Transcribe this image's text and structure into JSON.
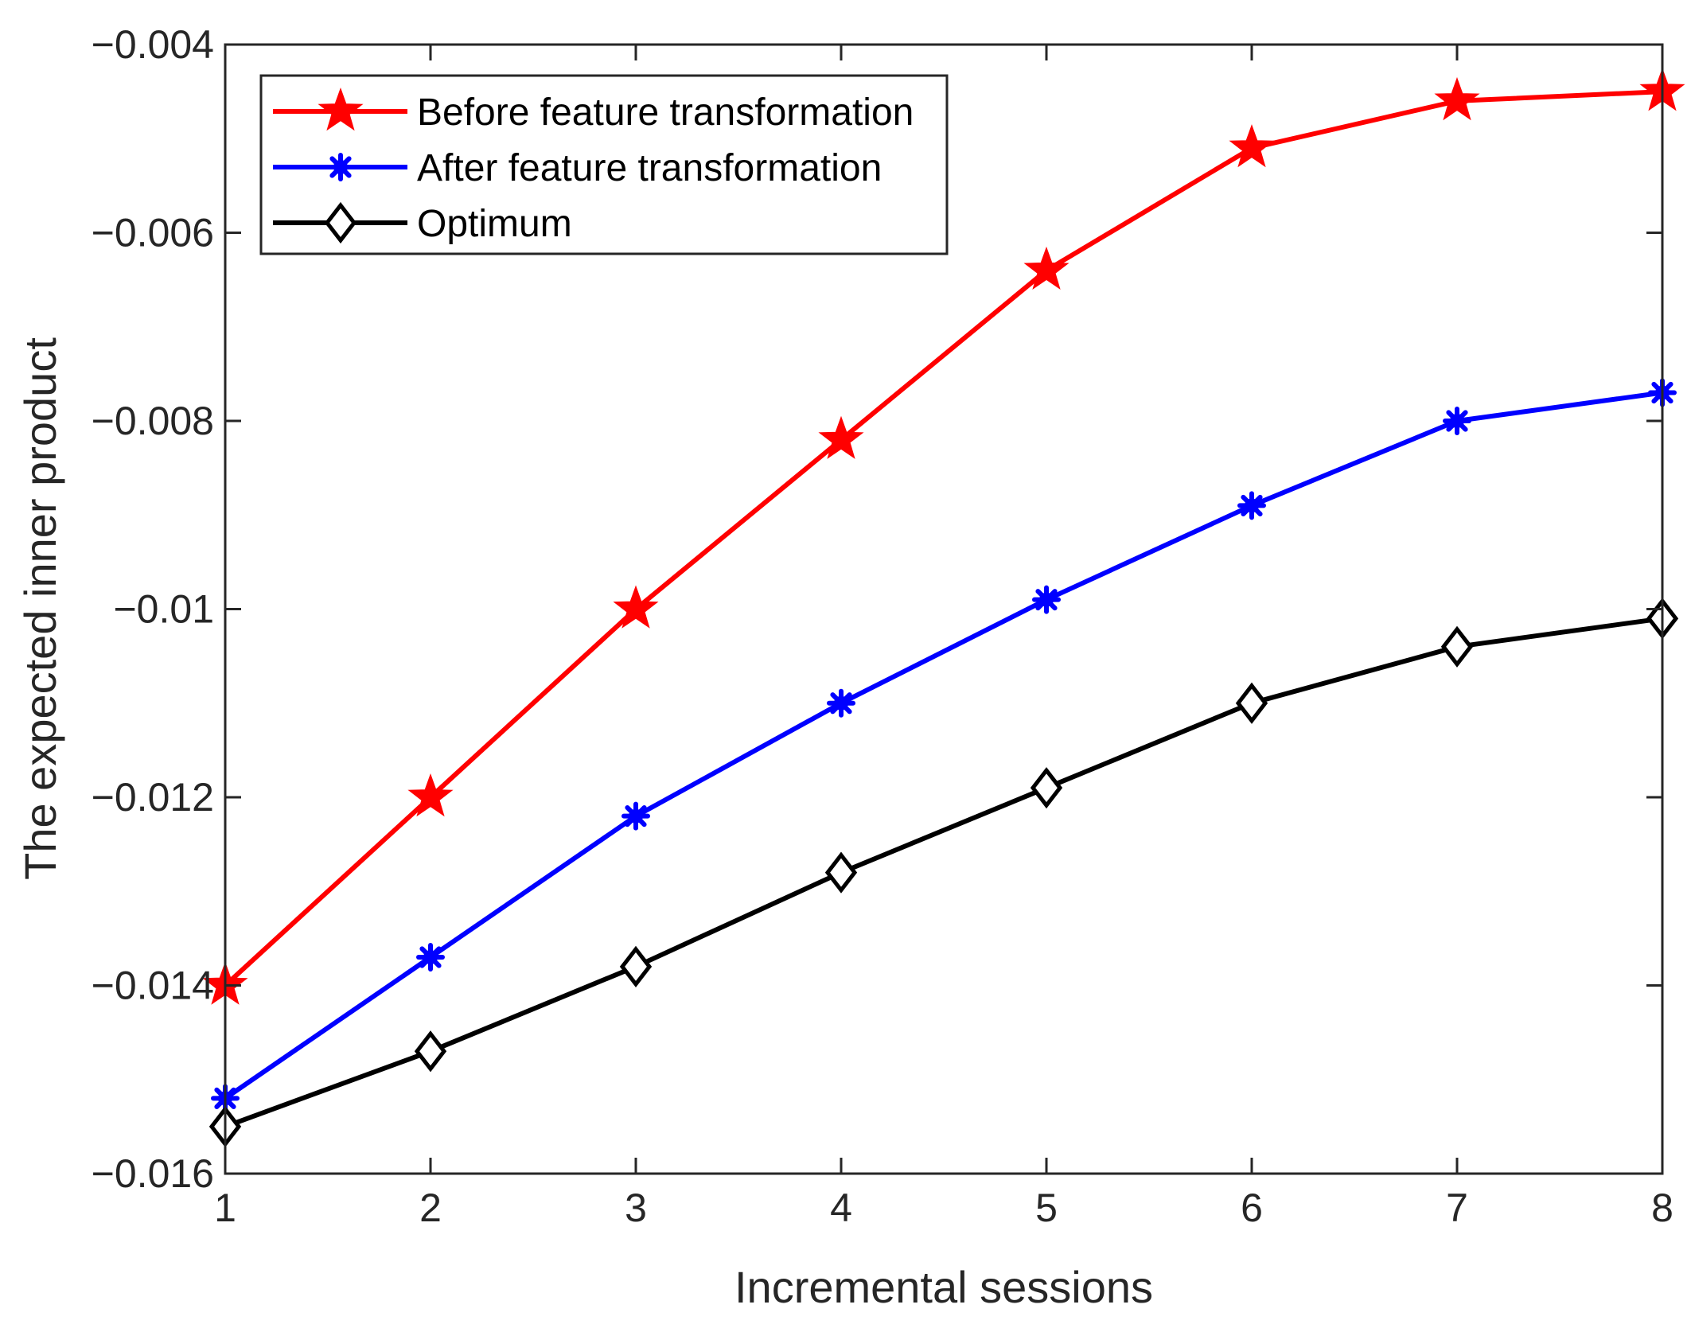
{
  "chart_data": {
    "type": "line",
    "title": "",
    "xlabel": "Incremental sessions",
    "ylabel": "The expected inner product",
    "x": [
      1,
      2,
      3,
      4,
      5,
      6,
      7,
      8
    ],
    "xlim": [
      1,
      8
    ],
    "ylim": [
      -0.016,
      -0.004
    ],
    "xticks": [
      1,
      2,
      3,
      4,
      5,
      6,
      7,
      8
    ],
    "xtick_labels": [
      "1",
      "2",
      "3",
      "4",
      "5",
      "6",
      "7",
      "8"
    ],
    "yticks": [
      -0.016,
      -0.014,
      -0.012,
      -0.01,
      -0.008,
      -0.006,
      -0.004
    ],
    "ytick_labels": [
      "−0.016",
      "−0.014",
      "−0.012",
      "−0.01",
      "−0.008",
      "−0.006",
      "−0.004"
    ],
    "grid": false,
    "legend_position": "top-left",
    "series": [
      {
        "name": "Before feature transformation",
        "color": "#ff0000",
        "marker": "star",
        "values": [
          -0.014,
          -0.012,
          -0.01,
          -0.0082,
          -0.0064,
          -0.0051,
          -0.0046,
          -0.0045
        ]
      },
      {
        "name": "After feature transformation",
        "color": "#0000ff",
        "marker": "asterisk",
        "values": [
          -0.0152,
          -0.0137,
          -0.0122,
          -0.011,
          -0.0099,
          -0.0089,
          -0.008,
          -0.0077
        ]
      },
      {
        "name": "Optimum",
        "color": "#000000",
        "marker": "diamond",
        "values": [
          -0.0155,
          -0.0147,
          -0.0138,
          -0.0128,
          -0.0119,
          -0.011,
          -0.0104,
          -0.0101
        ]
      }
    ]
  }
}
